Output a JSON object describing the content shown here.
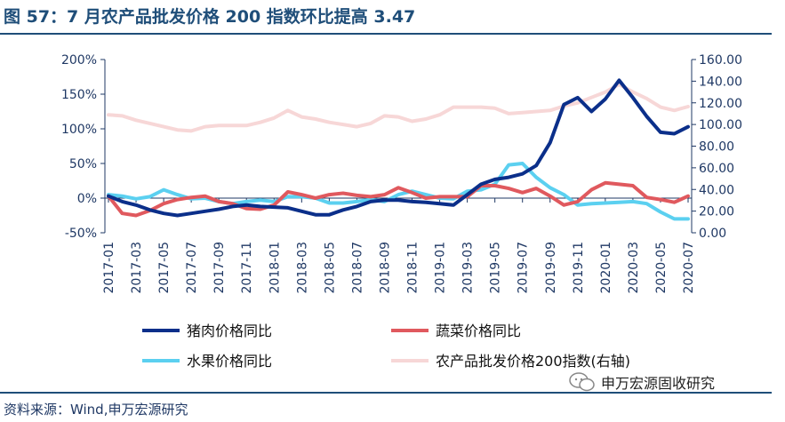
{
  "title": "图 57：7 月农产品批发价格 200 指数环比提高 3.47",
  "source": "资料来源：Wind,申万宏源研究",
  "watermark": "申万宏源固收研究",
  "chart_data": {
    "type": "line",
    "x": [
      "2017-01",
      "2017-02",
      "2017-03",
      "2017-04",
      "2017-05",
      "2017-06",
      "2017-07",
      "2017-08",
      "2017-09",
      "2017-10",
      "2017-11",
      "2017-12",
      "2018-01",
      "2018-02",
      "2018-03",
      "2018-04",
      "2018-05",
      "2018-06",
      "2018-07",
      "2018-08",
      "2018-09",
      "2018-10",
      "2018-11",
      "2018-12",
      "2019-01",
      "2019-02",
      "2019-03",
      "2019-04",
      "2019-05",
      "2019-06",
      "2019-07",
      "2019-08",
      "2019-09",
      "2019-10",
      "2019-11",
      "2019-12",
      "2020-01",
      "2020-02",
      "2020-03",
      "2020-04",
      "2020-05",
      "2020-06",
      "2020-07"
    ],
    "x_tick_labels": [
      "2017-01",
      "2017-03",
      "2017-05",
      "2017-07",
      "2017-09",
      "2017-11",
      "2018-01",
      "2018-03",
      "2018-05",
      "2018-07",
      "2018-09",
      "2018-11",
      "2019-01",
      "2019-03",
      "2019-05",
      "2019-07",
      "2019-09",
      "2019-11",
      "2020-01",
      "2020-03",
      "2020-05",
      "2020-07"
    ],
    "y_left": {
      "min": -50,
      "max": 200,
      "ticks": [
        "-50%",
        "0%",
        "50%",
        "100%",
        "150%",
        "200%"
      ]
    },
    "y_right": {
      "min": 0,
      "max": 160,
      "ticks": [
        "0.00",
        "20.00",
        "40.00",
        "60.00",
        "80.00",
        "100.00",
        "120.00",
        "140.00",
        "160.00"
      ]
    },
    "series": [
      {
        "name": "猪肉价格同比",
        "axis": "left",
        "color": "#0b2f8a",
        "values": [
          3,
          -5,
          -10,
          -17,
          -22,
          -25,
          -22,
          -19,
          -16,
          -12,
          -10,
          -12,
          -13,
          -14,
          -19,
          -24,
          -24,
          -17,
          -12,
          -5,
          -3,
          -3,
          -5,
          -6,
          -8,
          -10,
          5,
          20,
          27,
          30,
          35,
          47,
          80,
          135,
          145,
          125,
          143,
          170,
          145,
          118,
          95,
          93,
          103
        ]
      },
      {
        "name": "蔬菜价格同比",
        "axis": "left",
        "color": "#e0595e",
        "values": [
          3,
          -22,
          -25,
          -18,
          -8,
          -2,
          1,
          3,
          -5,
          -8,
          -15,
          -16,
          -10,
          9,
          5,
          0,
          5,
          7,
          4,
          2,
          5,
          15,
          8,
          0,
          2,
          2,
          2,
          18,
          18,
          14,
          8,
          14,
          3,
          -10,
          -5,
          12,
          22,
          20,
          18,
          1,
          -2,
          -6,
          3
        ]
      },
      {
        "name": "水果价格同比",
        "axis": "left",
        "color": "#5bd0f0",
        "values": [
          5,
          3,
          -1,
          2,
          12,
          5,
          -1,
          0,
          -5,
          -8,
          -5,
          -3,
          -5,
          2,
          2,
          0,
          -7,
          -7,
          -5,
          -2,
          -5,
          5,
          10,
          5,
          0,
          -1,
          10,
          12,
          20,
          48,
          50,
          30,
          15,
          5,
          -10,
          -8,
          -7,
          -6,
          -5,
          -8,
          -20,
          -30,
          -30
        ]
      },
      {
        "name": "农产品批发价格200指数(右轴)",
        "axis": "right",
        "color": "#f7d7d7",
        "values": [
          109,
          108,
          104,
          101,
          98,
          95,
          94,
          98,
          99,
          99,
          99,
          102,
          106,
          113,
          107,
          105,
          102,
          100,
          98,
          101,
          108,
          107,
          103,
          105,
          109,
          116,
          116,
          116,
          115,
          110,
          111,
          112,
          113,
          117,
          120,
          125,
          130,
          137,
          130,
          124,
          116,
          113,
          116.5
        ]
      }
    ],
    "legend": "bottom",
    "grid": false
  }
}
